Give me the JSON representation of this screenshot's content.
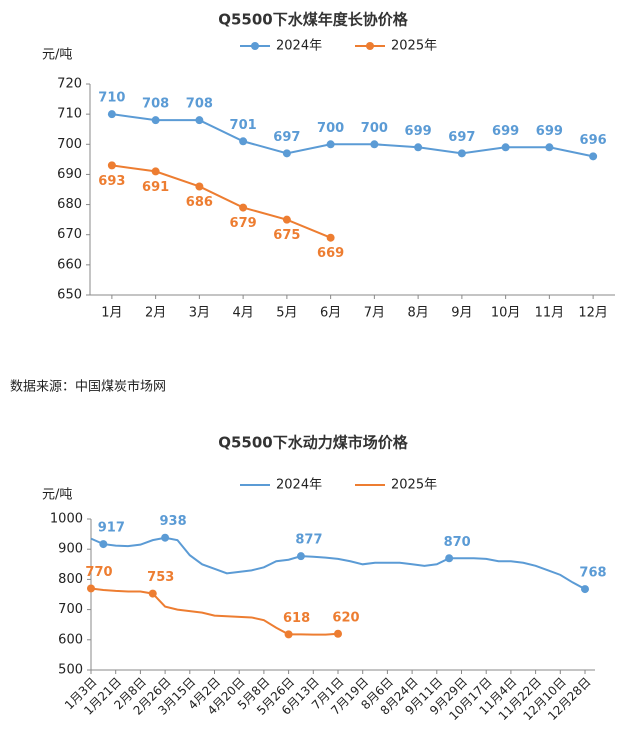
{
  "chart_data": [
    {
      "type": "line",
      "title": "Q5500下水煤年度长协价格",
      "y_label": "元/吨",
      "categories": [
        "1月",
        "2月",
        "3月",
        "4月",
        "5月",
        "6月",
        "7月",
        "8月",
        "9月",
        "10月",
        "11月",
        "12月"
      ],
      "series": [
        {
          "name": "2024年",
          "color": "#5b9bd5",
          "values": [
            710,
            708,
            708,
            701,
            697,
            700,
            700,
            699,
            697,
            699,
            699,
            696
          ],
          "markers": [
            0,
            1,
            2,
            3,
            4,
            5,
            6,
            7,
            8,
            9,
            10,
            11
          ],
          "label_side": "above"
        },
        {
          "name": "2025年",
          "color": "#ed7d31",
          "values": [
            693,
            691,
            686,
            679,
            675,
            669,
            null,
            null,
            null,
            null,
            null,
            null
          ],
          "markers": [
            0,
            1,
            2,
            3,
            4,
            5
          ],
          "label_side": "below"
        }
      ],
      "ylim": [
        650,
        720
      ],
      "yticks": [
        650,
        660,
        670,
        680,
        690,
        700,
        710,
        720
      ],
      "grid": false,
      "legend": "top"
    },
    {
      "type": "line",
      "title": "Q5500下水动力煤市场价格",
      "y_label": "元/吨",
      "categories": [
        "1月3日",
        null,
        "1月21日",
        null,
        "2月8日",
        null,
        "2月26日",
        null,
        "3月15日",
        null,
        "4月2日",
        null,
        "4月20日",
        null,
        "5月8日",
        null,
        "5月26日",
        null,
        "6月13日",
        null,
        "7月1日",
        null,
        "7月19日",
        null,
        "8月6日",
        null,
        "8月24日",
        null,
        "9月11日",
        null,
        "9月29日",
        null,
        "10月17日",
        null,
        "11月4日",
        null,
        "11月22日",
        null,
        "12月10日",
        null,
        "12月28日"
      ],
      "series": [
        {
          "name": "2024年",
          "color": "#5b9bd5",
          "values": [
            935,
            917,
            912,
            910,
            915,
            930,
            938,
            930,
            880,
            850,
            835,
            820,
            825,
            830,
            840,
            860,
            865,
            877,
            875,
            872,
            868,
            860,
            850,
            855,
            855,
            855,
            850,
            845,
            850,
            870,
            870,
            870,
            868,
            860,
            860,
            855,
            845,
            830,
            815,
            790,
            768
          ],
          "markers": [
            1,
            6,
            17,
            29,
            40
          ],
          "label_side": "above"
        },
        {
          "name": "2025年",
          "color": "#ed7d31",
          "values": [
            770,
            765,
            762,
            760,
            760,
            753,
            710,
            700,
            695,
            690,
            680,
            678,
            676,
            674,
            665,
            640,
            618,
            618,
            617,
            617,
            620,
            null,
            null,
            null,
            null,
            null,
            null,
            null,
            null,
            null,
            null,
            null,
            null,
            null,
            null,
            null,
            null,
            null,
            null,
            null,
            null
          ],
          "markers": [
            0,
            5,
            16,
            20
          ],
          "label_side": "above"
        }
      ],
      "ylim": [
        500,
        1000
      ],
      "yticks": [
        500,
        600,
        700,
        800,
        900,
        1000
      ],
      "grid": false,
      "legend": "top"
    }
  ],
  "source": "数据来源：中国煤炭市场网"
}
